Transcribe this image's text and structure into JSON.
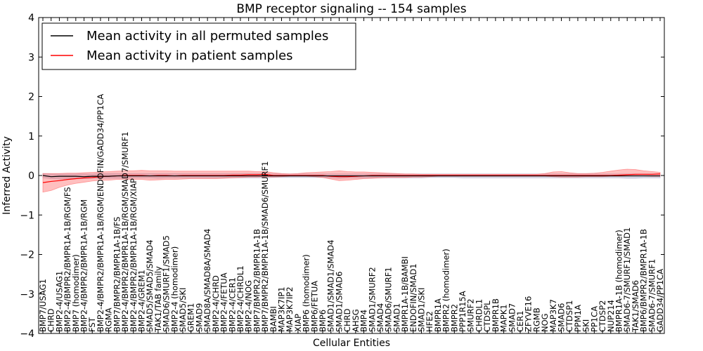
{
  "chart_data": {
    "type": "line",
    "title": "BMP receptor signaling -- 154 samples",
    "xlabel": "Cellular Entities",
    "ylabel": "Inferred Activity",
    "ylim": [
      -4,
      4
    ],
    "yticks": [
      -4,
      -3,
      -2,
      -1,
      0,
      1,
      2,
      3,
      4
    ],
    "ytick_labels": [
      "−4",
      "−3",
      "−2",
      "−1",
      "0",
      "1",
      "2",
      "3",
      "4"
    ],
    "legend": {
      "location": "top-left",
      "entries": [
        {
          "label": "Mean activity in all permuted samples",
          "color": "#000000"
        },
        {
          "label": "Mean activity in patient samples",
          "color": "#ff0000"
        }
      ]
    },
    "categories": [
      "BMP7/USAG1",
      "CHRD",
      "BMP2-4/USAG1",
      "BMP2-4/BMPR2/BMPR1A-1B/RGM/FS",
      "BMP7 (homodimer)",
      "BMP2-4/BMPR2/BMPR1A-1B/RGM",
      "FST",
      "BMP2-4/BMPR2/BMPR1A-1B/RGM/ENDOFIN/GADD34/PP1CA",
      "RGMA",
      "BMP7/BMPR2/BMPR1A-1B/FS",
      "BMP2-4/BMPR2/BMPR1A-1B/RGM/SMAD7/SMURF1",
      "BMP2-4/BMPR2/BMPR1A-1B/RGM/XIAP",
      "BMP2-4/GREM1",
      "SMAD5/SMAD5/SMAD4",
      "TAK1/TAB family",
      "SMAD6/SMURF1/SMAD5",
      "BMP2-4 (homodimer)",
      "SMAD5/SKI",
      "GREM1",
      "SMAD9",
      "SMAD8A/SMAD8A/SMAD4",
      "BMP2-4/CHRD",
      "BMP2-4/FETUA",
      "BMP2-4/CER1",
      "BMP2-4/CHRDL1",
      "BMP2-4/NOG",
      "BMP7/BMPR2/BMPR1A-1B",
      "BMP7/BMPR2/BMPR1A-1B/SMAD6/SMURF1",
      "BAMBI",
      "MAP3K7IP1",
      "MAP3K7IP2",
      "XIAP",
      "BMP6 (homodimer)",
      "BMP6/FETUA",
      "BMP6",
      "SMAD1/SMAD1/SMAD4",
      "SMAD1/SMAD6",
      "CHRD",
      "AHSG",
      "BMP4",
      "SMAD1/SMURF2",
      "SMAD4",
      "SMAD6/SMURF1",
      "SMAD1",
      "BMPR1A-1B/BAMBI",
      "ENDOFIN/SMAD1",
      "SMAD1/SKI",
      "HFE2",
      "BMPR1A",
      "BMPR2 (homodimer)",
      "BMPR2",
      "PPP1R15A",
      "SMURF2",
      "CHRDL1",
      "CTDSPL",
      "BMPR1B",
      "MAPK1",
      "SMAD7",
      "CER1",
      "ZFYVE16",
      "RGMB",
      "NOG",
      "MAP3K7",
      "SMAD6",
      "CTDSP1",
      "PPM1A",
      "SKI",
      "PP1CA",
      "CTDSP2",
      "NUP214",
      "BMPR1A-1B (homodimer)",
      "SMAD6-7/SMURF1/SMAD1",
      "TAK1/SMAD6",
      "BMP6/BMPR2/BMPR1A-1B",
      "SMAD6-7/SMURF1",
      "GADD34/PP1CA"
    ],
    "series": [
      {
        "name": "Mean activity in all permuted samples",
        "color": "#000000",
        "values": [
          0.0,
          -0.03,
          -0.02,
          -0.02,
          -0.02,
          -0.03,
          -0.02,
          -0.02,
          -0.02,
          -0.01,
          -0.01,
          -0.01,
          -0.01,
          -0.01,
          -0.01,
          -0.01,
          -0.01,
          -0.01,
          -0.01,
          -0.01,
          -0.01,
          -0.01,
          -0.01,
          -0.01,
          -0.01,
          -0.01,
          -0.01,
          -0.01,
          -0.01,
          -0.01,
          -0.01,
          -0.01,
          -0.01,
          -0.01,
          -0.01,
          -0.01,
          -0.01,
          -0.01,
          -0.01,
          -0.01,
          -0.01,
          -0.01,
          -0.01,
          -0.01,
          -0.01,
          -0.01,
          -0.01,
          -0.01,
          -0.01,
          -0.01,
          -0.01,
          -0.01,
          -0.01,
          -0.01,
          -0.01,
          -0.01,
          -0.01,
          -0.01,
          -0.01,
          -0.01,
          -0.01,
          -0.01,
          -0.01,
          -0.01,
          -0.01,
          -0.01,
          -0.01,
          -0.01,
          -0.01,
          -0.01,
          -0.01,
          -0.01,
          -0.01,
          -0.01,
          -0.01,
          -0.01
        ],
        "lower": [
          -0.06,
          -0.08,
          -0.09,
          -0.08,
          -0.08,
          -0.08,
          -0.07,
          -0.07,
          -0.07,
          -0.07,
          -0.07,
          -0.06,
          -0.06,
          -0.06,
          -0.07,
          -0.06,
          -0.06,
          -0.06,
          -0.06,
          -0.06,
          -0.06,
          -0.06,
          -0.06,
          -0.06,
          -0.06,
          -0.06,
          -0.06,
          -0.06,
          -0.05,
          -0.05,
          -0.05,
          -0.05,
          -0.05,
          -0.05,
          -0.05,
          -0.06,
          -0.07,
          -0.06,
          -0.06,
          -0.06,
          -0.06,
          -0.06,
          -0.06,
          -0.06,
          -0.06,
          -0.06,
          -0.06,
          -0.05,
          -0.05,
          -0.05,
          -0.05,
          -0.06,
          -0.06,
          -0.06,
          -0.06,
          -0.06,
          -0.06,
          -0.06,
          -0.06,
          -0.06,
          -0.06,
          -0.06,
          -0.06,
          -0.06,
          -0.06,
          -0.06,
          -0.06,
          -0.06,
          -0.06,
          -0.06,
          -0.06,
          -0.07,
          -0.07,
          -0.06,
          -0.06,
          -0.06
        ],
        "upper": [
          0.05,
          0.04,
          0.04,
          0.04,
          0.04,
          0.04,
          0.04,
          0.05,
          0.05,
          0.05,
          0.05,
          0.05,
          0.05,
          0.05,
          0.05,
          0.05,
          0.05,
          0.05,
          0.05,
          0.05,
          0.05,
          0.05,
          0.05,
          0.05,
          0.05,
          0.05,
          0.05,
          0.05,
          0.04,
          0.04,
          0.04,
          0.04,
          0.04,
          0.04,
          0.04,
          0.04,
          0.04,
          0.04,
          0.04,
          0.04,
          0.04,
          0.04,
          0.04,
          0.04,
          0.04,
          0.04,
          0.04,
          0.04,
          0.04,
          0.04,
          0.04,
          0.04,
          0.04,
          0.04,
          0.04,
          0.04,
          0.04,
          0.04,
          0.04,
          0.04,
          0.04,
          0.04,
          0.04,
          0.04,
          0.04,
          0.04,
          0.04,
          0.04,
          0.04,
          0.04,
          0.04,
          0.04,
          0.04,
          0.04,
          0.04,
          0.04
        ]
      },
      {
        "name": "Mean activity in patient samples",
        "color": "#ff0000",
        "values": [
          -0.18,
          -0.15,
          -0.13,
          -0.1,
          -0.08,
          -0.06,
          -0.05,
          -0.03,
          -0.02,
          -0.01,
          0.0,
          0.0,
          0.0,
          -0.01,
          0.0,
          0.0,
          -0.01,
          0.0,
          0.0,
          0.0,
          0.0,
          0.0,
          0.0,
          0.01,
          0.01,
          0.02,
          0.02,
          0.03,
          0.0,
          0.0,
          0.0,
          0.0,
          0.0,
          0.0,
          0.0,
          -0.02,
          -0.03,
          -0.03,
          -0.02,
          -0.01,
          0.0,
          0.0,
          0.0,
          0.0,
          0.0,
          0.0,
          0.0,
          0.0,
          0.0,
          0.0,
          0.0,
          0.0,
          0.0,
          0.0,
          0.0,
          0.0,
          0.0,
          0.0,
          0.0,
          0.0,
          0.0,
          0.0,
          0.0,
          0.0,
          0.0,
          0.0,
          0.0,
          0.0,
          0.0,
          0.0,
          0.01,
          0.02,
          0.03,
          0.03,
          0.03,
          0.04
        ],
        "lower": [
          -0.42,
          -0.38,
          -0.3,
          -0.24,
          -0.2,
          -0.17,
          -0.14,
          -0.12,
          -0.12,
          -0.1,
          -0.1,
          -0.1,
          -0.1,
          -0.12,
          -0.11,
          -0.1,
          -0.1,
          -0.09,
          -0.08,
          -0.08,
          -0.08,
          -0.08,
          -0.07,
          -0.06,
          -0.05,
          -0.04,
          -0.04,
          -0.03,
          -0.04,
          -0.03,
          -0.02,
          -0.02,
          -0.02,
          -0.03,
          -0.05,
          -0.09,
          -0.13,
          -0.12,
          -0.1,
          -0.08,
          -0.07,
          -0.06,
          -0.05,
          -0.05,
          -0.05,
          -0.04,
          -0.04,
          -0.03,
          -0.02,
          -0.02,
          -0.02,
          -0.02,
          -0.02,
          -0.02,
          -0.02,
          -0.02,
          -0.02,
          -0.02,
          -0.02,
          -0.02,
          -0.02,
          -0.02,
          -0.03,
          -0.04,
          -0.04,
          -0.04,
          -0.03,
          -0.03,
          -0.03,
          -0.02,
          -0.02,
          -0.01,
          0.0,
          -0.01,
          -0.02,
          -0.02
        ],
        "upper": [
          0.05,
          0.05,
          0.05,
          0.06,
          0.06,
          0.07,
          0.08,
          0.09,
          0.1,
          0.11,
          0.12,
          0.12,
          0.13,
          0.12,
          0.12,
          0.12,
          0.11,
          0.11,
          0.11,
          0.11,
          0.11,
          0.11,
          0.11,
          0.11,
          0.11,
          0.11,
          0.1,
          0.1,
          0.07,
          0.05,
          0.04,
          0.05,
          0.07,
          0.08,
          0.09,
          0.1,
          0.12,
          0.1,
          0.09,
          0.09,
          0.08,
          0.07,
          0.06,
          0.05,
          0.04,
          0.04,
          0.03,
          0.03,
          0.03,
          0.03,
          0.03,
          0.03,
          0.03,
          0.03,
          0.03,
          0.03,
          0.03,
          0.03,
          0.03,
          0.03,
          0.03,
          0.05,
          0.09,
          0.1,
          0.07,
          0.05,
          0.05,
          0.06,
          0.08,
          0.11,
          0.14,
          0.16,
          0.15,
          0.12,
          0.1,
          0.08
        ]
      }
    ]
  }
}
